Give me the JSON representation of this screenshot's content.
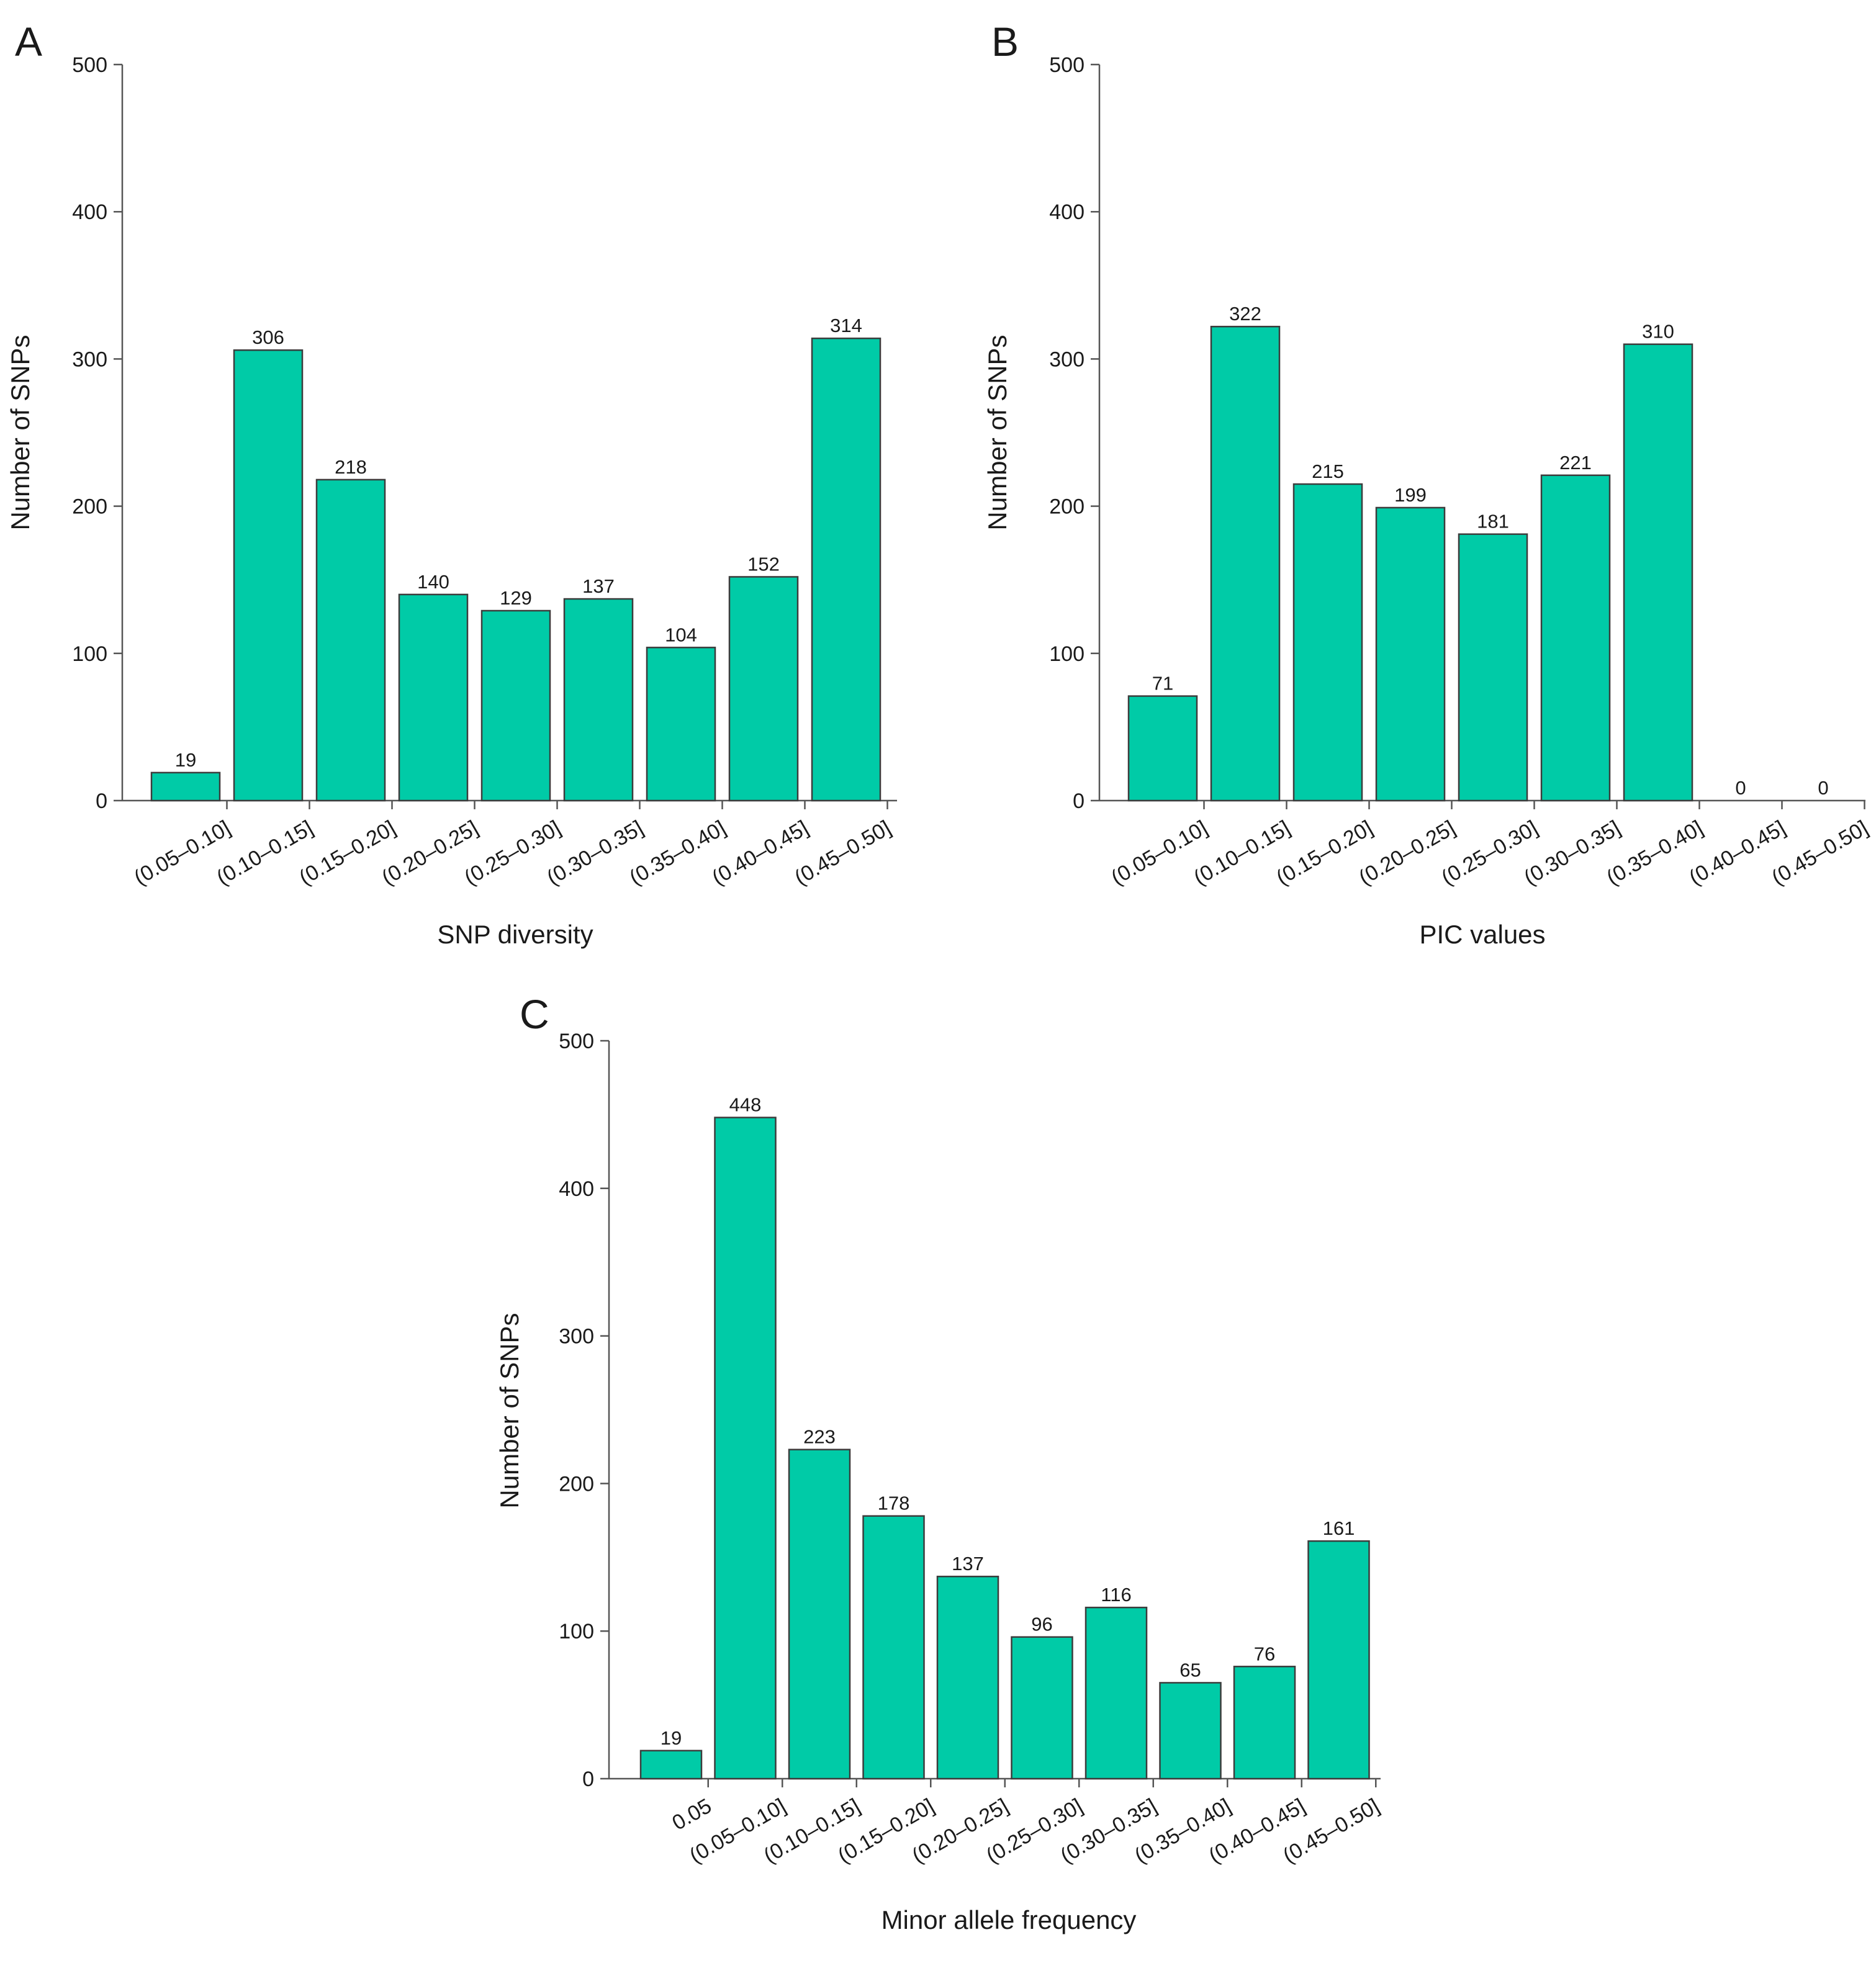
{
  "colors": {
    "bar_fill": "#00CBA7",
    "bar_stroke": "#3c3c3c",
    "axis": "#555555",
    "text": "#1a1a1a"
  },
  "chart_data": [
    {
      "panel": "A",
      "type": "bar",
      "title": "",
      "xlabel": "SNP diversity",
      "ylabel": "Number of SNPs",
      "ylim": [
        0,
        500
      ],
      "yticks": [
        0,
        100,
        200,
        300,
        400,
        500
      ],
      "categories": [
        "(0.05–0.10]",
        "(0.10–0.15]",
        "(0.15–0.20]",
        "(0.20–0.25]",
        "(0.25–0.30]",
        "(0.30–0.35]",
        "(0.35–0.40]",
        "(0.40–0.45]",
        "(0.45–0.50]"
      ],
      "values": [
        19,
        306,
        218,
        140,
        129,
        137,
        104,
        152,
        314
      ]
    },
    {
      "panel": "B",
      "type": "bar",
      "title": "",
      "xlabel": "PIC values",
      "ylabel": "Number of SNPs",
      "ylim": [
        0,
        500
      ],
      "yticks": [
        0,
        100,
        200,
        300,
        400,
        500
      ],
      "categories": [
        "(0.05–0.10]",
        "(0.10–0.15]",
        "(0.15–0.20]",
        "(0.20–0.25]",
        "(0.25–0.30]",
        "(0.30–0.35]",
        "(0.35–0.40]",
        "(0.40–0.45]",
        "(0.45–0.50]"
      ],
      "values": [
        71,
        322,
        215,
        199,
        181,
        221,
        310,
        0,
        0
      ]
    },
    {
      "panel": "C",
      "type": "bar",
      "title": "",
      "xlabel": "Minor allele frequency",
      "ylabel": "Number of SNPs",
      "ylim": [
        0,
        500
      ],
      "yticks": [
        0,
        100,
        200,
        300,
        400,
        500
      ],
      "categories": [
        "0.05",
        "(0.05–0.10]",
        "(0.10–0.15]",
        "(0.15–0.20]",
        "(0.20–0.25]",
        "(0.25–0.30]",
        "(0.30–0.35]",
        "(0.35–0.40]",
        "(0.40–0.45]",
        "(0.45–0.50]"
      ],
      "values": [
        19,
        448,
        223,
        178,
        137,
        96,
        116,
        65,
        76,
        161
      ]
    }
  ]
}
